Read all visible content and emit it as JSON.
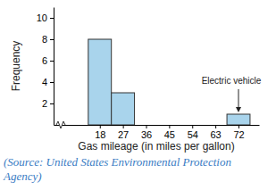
{
  "chart_data": {
    "type": "histogram",
    "bins": [
      13.5,
      22.5,
      31.5,
      40.5,
      49.5,
      58.5,
      67.5,
      76.5
    ],
    "values": [
      8,
      3,
      0,
      0,
      0,
      0,
      1
    ],
    "color": "#a9d4ec",
    "xlabel": "Gas mileage (in miles per gallon)",
    "ylabel": "Frequency",
    "xlim": [
      0,
      80
    ],
    "ylim": [
      0,
      11
    ],
    "xticks": [
      18,
      27,
      36,
      45,
      54,
      63,
      72
    ],
    "yticks": [
      2,
      4,
      6,
      8,
      10
    ],
    "annotations": [
      {
        "text": "Electric vehicle",
        "x": 72,
        "y": 1
      }
    ],
    "source": "(Source: United States Environmental Protection Agency)"
  }
}
